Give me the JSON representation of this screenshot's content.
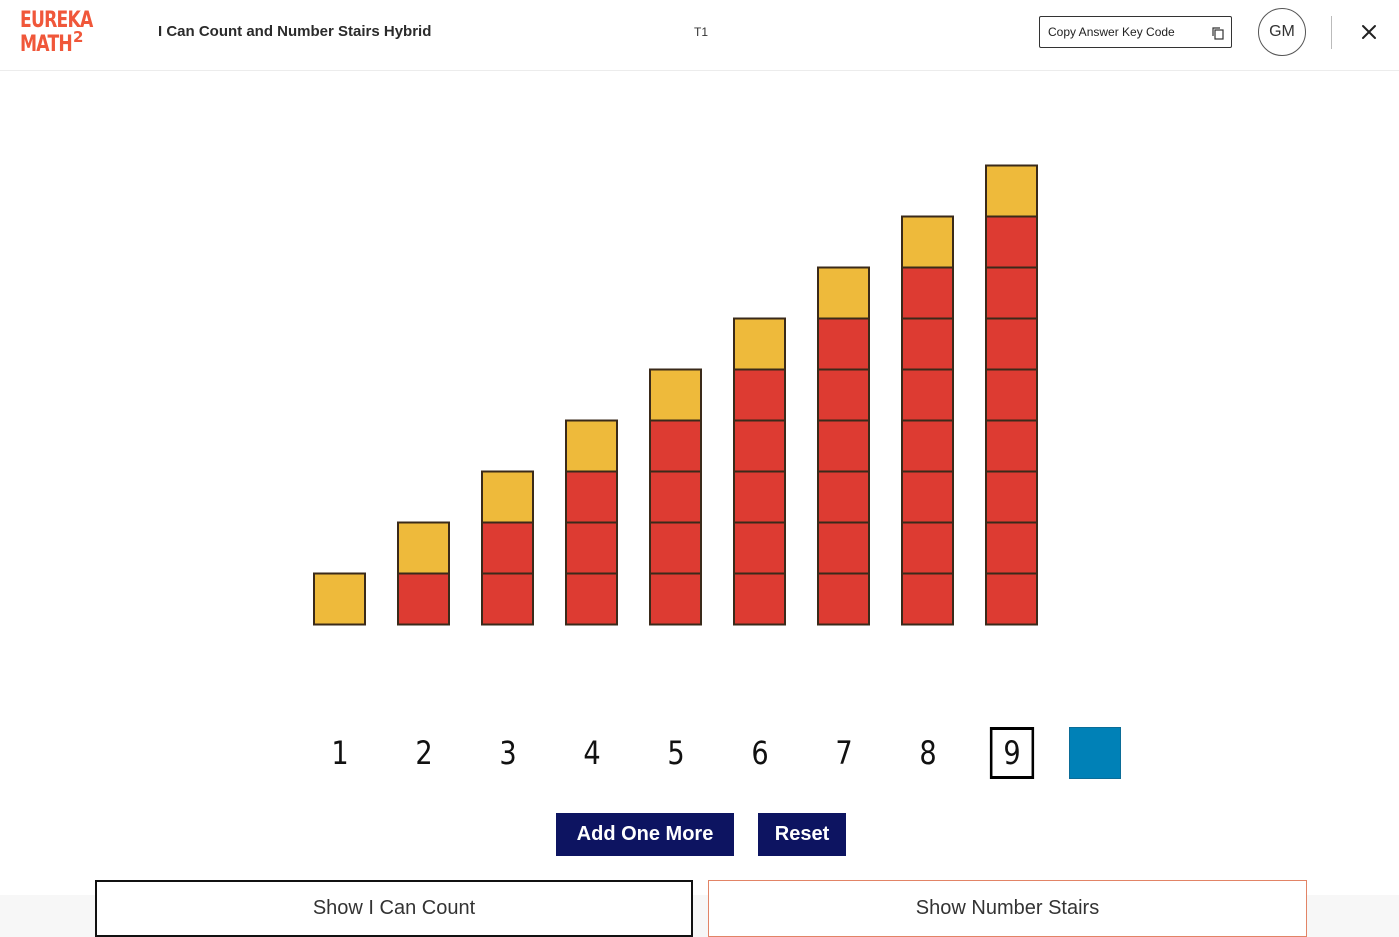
{
  "header": {
    "title": "I Can Count and Number Stairs Hybrid",
    "tag": "T1",
    "copy_button_label": "Copy Answer Key Code",
    "avatar_initials": "GM",
    "logo_line1": "EUREKA",
    "logo_line2": "MATH",
    "logo_sup": "2"
  },
  "stairs": {
    "heights": [
      1,
      2,
      3,
      4,
      5,
      6,
      7,
      8,
      9
    ],
    "top_color": "#eeba3b",
    "body_color": "#dd3b32",
    "numbers": [
      "1",
      "2",
      "3",
      "4",
      "5",
      "6",
      "7",
      "8",
      "9"
    ],
    "selected_number": "9",
    "next_cube_color": "#0081b7"
  },
  "controls": {
    "add_label": "Add One More",
    "reset_label": "Reset",
    "show_count_label": "Show I Can Count",
    "show_stairs_label": "Show Number Stairs"
  }
}
